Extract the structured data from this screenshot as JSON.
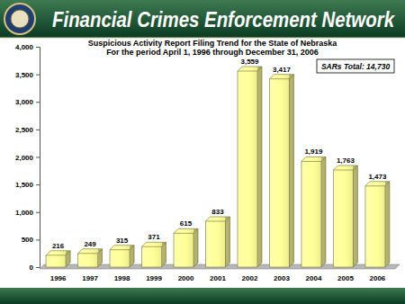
{
  "header": "Financial Crimes Enforcement Network",
  "chart_data": {
    "type": "bar",
    "title": "Suspicious Activity Report Filing Trend for the State of Nebraska",
    "subtitle": "For the period April 1, 1996 through December 31, 2006",
    "annotations": [
      "SARs Total: 14,730"
    ],
    "categories": [
      "1996",
      "1997",
      "1998",
      "1999",
      "2000",
      "2001",
      "2002",
      "2003",
      "2004",
      "2005",
      "2006"
    ],
    "values": [
      216,
      249,
      315,
      371,
      615,
      833,
      3559,
      3417,
      1919,
      1763,
      1473
    ],
    "value_labels": [
      "216",
      "249",
      "315",
      "371",
      "615",
      "833",
      "3,559",
      "3,417",
      "1,919",
      "1,763",
      "1,473"
    ],
    "color": "#ffff99",
    "ylim": [
      0,
      4000
    ],
    "yticks": [
      0,
      500,
      {
        "value": 1000,
        "label": "1,000"
      },
      {
        "value": 1500,
        "label": "1,500"
      },
      {
        "value": 2000,
        "label": "2,000"
      },
      {
        "value": 2500,
        "label": "2,500"
      },
      {
        "value": 3000,
        "label": "3,000"
      },
      {
        "value": 3500,
        "label": "3,500"
      },
      {
        "value": 4000,
        "label": "4,000"
      }
    ],
    "grid": false,
    "data_labels": true
  }
}
